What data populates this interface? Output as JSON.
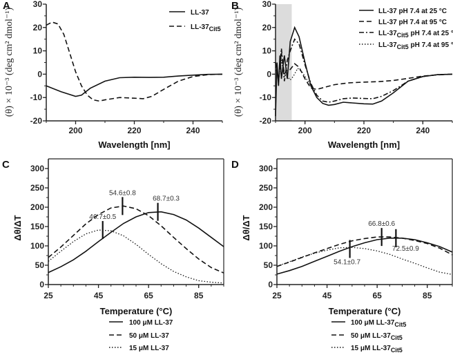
{
  "chart_data": [
    {
      "panel": "A",
      "type": "line",
      "xlabel": "Wavelength [nm]",
      "ylabel": "(θ) × 10⁻³ (deg cm² dmol⁻¹)",
      "xlim": [
        190,
        250
      ],
      "ylim": [
        -20,
        30
      ],
      "xticks": [
        200,
        220,
        240
      ],
      "yticks": [
        -20,
        -10,
        0,
        10,
        20,
        30
      ],
      "legend_position": "top-right",
      "series": [
        {
          "name": "LL-37",
          "sub": "",
          "style": "solid",
          "x": [
            190,
            195,
            200,
            202,
            205,
            210,
            215,
            220,
            225,
            230,
            235,
            240,
            245,
            250
          ],
          "y": [
            -5,
            -7.5,
            -9.5,
            -9,
            -6,
            -3,
            -1.5,
            -1.3,
            -1.4,
            -1.3,
            -0.8,
            -0.4,
            -0.1,
            0
          ]
        },
        {
          "name": "LL-37",
          "sub": "Cit5",
          "style": "dashed",
          "x": [
            190,
            192,
            194,
            196,
            198,
            200,
            202,
            204,
            206,
            208,
            210,
            215,
            220,
            223,
            226,
            230,
            235,
            240,
            245,
            250
          ],
          "y": [
            21,
            22.3,
            21.5,
            17,
            9,
            1,
            -5,
            -9,
            -11,
            -11.5,
            -11,
            -10,
            -10.3,
            -10.5,
            -9.5,
            -6.5,
            -3,
            -1,
            -0.2,
            0
          ]
        }
      ]
    },
    {
      "panel": "B",
      "type": "line",
      "xlabel": "Wavelength [nm]",
      "ylabel": "(θ) × 10⁻³ (deg cm² dmol⁻¹)",
      "xlim": [
        190,
        250
      ],
      "ylim": [
        -20,
        30
      ],
      "shaded_region": [
        190,
        195.5
      ],
      "xticks": [
        200,
        220,
        240
      ],
      "yticks": [
        -20,
        -10,
        0,
        10,
        20,
        30
      ],
      "legend_position": "top-right",
      "series": [
        {
          "name": "LL-37",
          "sub": "",
          "suffix": " pH 7.4 at 25 °C",
          "style": "solid",
          "x": [
            190,
            190.5,
            191,
            191.5,
            192,
            193,
            194,
            195,
            196.5,
            198,
            200,
            202,
            204,
            206,
            208,
            210,
            213,
            216,
            220,
            223,
            226,
            230,
            235,
            240,
            245,
            250
          ],
          "y": [
            -18,
            5,
            -5,
            8,
            -2,
            8,
            -2,
            14,
            20,
            16,
            5,
            -5,
            -10,
            -12.5,
            -13.3,
            -13,
            -12,
            -12.3,
            -12.7,
            -12.8,
            -11.5,
            -8,
            -3,
            -1,
            -0.2,
            0
          ]
        },
        {
          "name": "LL-37",
          "sub": "",
          "suffix": " pH 7.4 at 95 °C",
          "style": "dashed",
          "x": [
            190,
            191,
            192,
            193,
            194,
            195,
            196.5,
            198,
            200,
            202,
            204,
            207,
            210,
            215,
            220,
            225,
            230,
            235,
            240,
            245,
            250
          ],
          "y": [
            5,
            -3,
            9,
            0,
            2,
            2,
            4.5,
            3,
            -2,
            -6,
            -6.5,
            -5.5,
            -4.5,
            -3.7,
            -3.4,
            -3.2,
            -2.7,
            -1.8,
            -0.8,
            -0.3,
            0
          ]
        },
        {
          "name": "LL-37",
          "sub": "Cit5",
          "suffix": " pH 7.4 at 25 °C",
          "style": "dashdot",
          "x": [
            190,
            191,
            192,
            193,
            194,
            195,
            196.5,
            198,
            200,
            202,
            204,
            206,
            208,
            210,
            213,
            216,
            220,
            223,
            226,
            230,
            235,
            240,
            245,
            250
          ],
          "y": [
            5,
            -3,
            11,
            -3,
            6,
            10,
            15,
            13,
            4,
            -4,
            -9,
            -11.5,
            -12,
            -11.5,
            -10.5,
            -10.2,
            -10.4,
            -10.5,
            -9.5,
            -7,
            -3,
            -1,
            -0.2,
            0
          ]
        },
        {
          "name": "LL-37",
          "sub": "Cit5",
          "suffix": " pH 7.4 at 95 °C",
          "style": "dotted",
          "x": [
            190,
            191,
            192,
            193,
            194,
            195,
            196,
            197.5,
            199,
            201,
            203
          ],
          "y": [
            3,
            -2,
            6,
            -1,
            -1,
            -2.5,
            -1,
            2.5,
            1,
            -3,
            -7
          ]
        }
      ]
    },
    {
      "panel": "C",
      "type": "line",
      "xlabel": "Temperature (°C)",
      "ylabel": "Δθ/ΔT",
      "xlim": [
        25,
        95
      ],
      "ylim": [
        0,
        325
      ],
      "xticks": [
        25,
        45,
        65,
        85
      ],
      "yticks": [
        0,
        50,
        100,
        150,
        200,
        250,
        300
      ],
      "legend_position": "bottom",
      "series": [
        {
          "name": "100 μM LL-37",
          "sub": "",
          "style": "solid",
          "tm_label": "68.7±0.3",
          "tm": 68.7,
          "tm_y": 188,
          "x": [
            25,
            30,
            35,
            40,
            45,
            50,
            55,
            60,
            65,
            70,
            75,
            80,
            85,
            90,
            95
          ],
          "y": [
            31,
            46,
            64,
            86,
            111,
            135,
            158,
            175,
            186,
            188,
            181,
            167,
            146,
            122,
            98
          ]
        },
        {
          "name": "50 μM LL-37",
          "sub": "",
          "style": "dashed",
          "tm_label": "54.6±0.8",
          "tm": 54.6,
          "tm_y": 203,
          "x": [
            25,
            30,
            35,
            40,
            45,
            50,
            55,
            60,
            65,
            70,
            75,
            80,
            85,
            90,
            95
          ],
          "y": [
            70,
            97,
            127,
            157,
            181,
            198,
            203,
            196,
            178,
            152,
            122,
            93,
            66,
            44,
            30
          ]
        },
        {
          "name": "15 μM LL-37",
          "sub": "",
          "style": "dotted",
          "tm_label": "46.7±0.5",
          "tm": 46.7,
          "tm_y": 141,
          "x": [
            25,
            30,
            35,
            40,
            45,
            50,
            55,
            60,
            65,
            70,
            75,
            80,
            85,
            90,
            95
          ],
          "y": [
            60,
            86,
            111,
            131,
            141,
            139,
            126,
            104,
            78,
            54,
            34,
            20,
            10,
            6,
            4
          ]
        }
      ]
    },
    {
      "panel": "D",
      "type": "line",
      "xlabel": "Temperature (°C)",
      "ylabel": "Δθ/ΔT",
      "xlim": [
        25,
        95
      ],
      "ylim": [
        0,
        325
      ],
      "xticks": [
        25,
        45,
        65,
        85
      ],
      "yticks": [
        0,
        50,
        100,
        150,
        200,
        250,
        300
      ],
      "legend_position": "bottom",
      "series": [
        {
          "name": "100 μM LL-37",
          "sub": "Cit5",
          "style": "solid",
          "tm_label": "72.5±0.9",
          "tm": 72.5,
          "tm_y": 120,
          "x": [
            25,
            30,
            35,
            40,
            45,
            50,
            55,
            60,
            65,
            70,
            75,
            80,
            85,
            90,
            95
          ],
          "y": [
            27,
            36,
            47,
            60,
            73,
            86,
            98,
            108,
            116,
            120,
            120,
            116,
            108,
            98,
            84
          ]
        },
        {
          "name": "50 μM LL-37",
          "sub": "Cit5",
          "style": "dashed",
          "tm_label": "66.8±0.6",
          "tm": 66.8,
          "tm_y": 123,
          "x": [
            25,
            30,
            35,
            40,
            45,
            50,
            55,
            60,
            65,
            70,
            75,
            80,
            85,
            90,
            95
          ],
          "y": [
            47,
            58,
            70,
            82,
            93,
            104,
            113,
            119,
            123,
            123,
            120,
            114,
            106,
            94,
            77
          ]
        },
        {
          "name": "15 μM LL-37",
          "sub": "Cit5",
          "style": "dotted",
          "tm_label": "54.1±0.7",
          "tm": 54.1,
          "tm_y": 92,
          "x": [
            25,
            30,
            35,
            40,
            45,
            50,
            55,
            60,
            65,
            70,
            75,
            80,
            85,
            90,
            95
          ],
          "y": [
            47,
            59,
            71,
            81,
            89,
            95,
            96,
            93,
            87,
            78,
            66,
            55,
            43,
            32,
            26
          ]
        }
      ]
    }
  ]
}
